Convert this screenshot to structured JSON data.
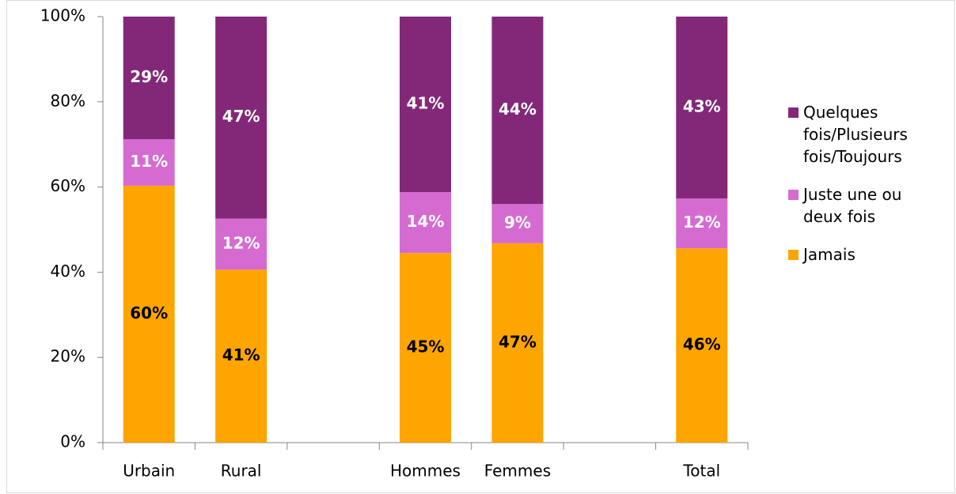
{
  "chart_data": {
    "type": "stacked_bar",
    "categories": [
      "Urbain",
      "Rural",
      null,
      "Hommes",
      "Femmes",
      null,
      "Total"
    ],
    "series": [
      {
        "name": "Jamais",
        "color": "#ffa500",
        "label_color": "#000000",
        "values": [
          60.3,
          40.6,
          null,
          44.5,
          46.8,
          null,
          45.6
        ],
        "value_labels": [
          "60%",
          "41%",
          null,
          "45%",
          "47%",
          null,
          "46%"
        ]
      },
      {
        "name": "Juste une ou deux fois",
        "color": "#d56bd1",
        "label_color": "#ffffff",
        "values": [
          10.9,
          12.0,
          null,
          14.3,
          9.2,
          null,
          11.7
        ],
        "value_labels": [
          "11%",
          "12%",
          null,
          "14%",
          "9%",
          null,
          "12%"
        ]
      },
      {
        "name": "Quelques fois/Plusieurs fois/Toujours",
        "color": "#832878",
        "label_color": "#ffffff",
        "values": [
          28.8,
          47.4,
          null,
          41.2,
          44.0,
          null,
          42.7
        ],
        "value_labels": [
          "29%",
          "47%",
          null,
          "41%",
          "44%",
          null,
          "43%"
        ]
      }
    ],
    "ylim": [
      0,
      100
    ],
    "yticks": [
      {
        "value": 0,
        "label": "0%"
      },
      {
        "value": 20,
        "label": "20%"
      },
      {
        "value": 40,
        "label": "40%"
      },
      {
        "value": 60,
        "label": "60%"
      },
      {
        "value": 80,
        "label": "80%"
      },
      {
        "value": 100,
        "label": "100%"
      }
    ],
    "legend": "right"
  }
}
